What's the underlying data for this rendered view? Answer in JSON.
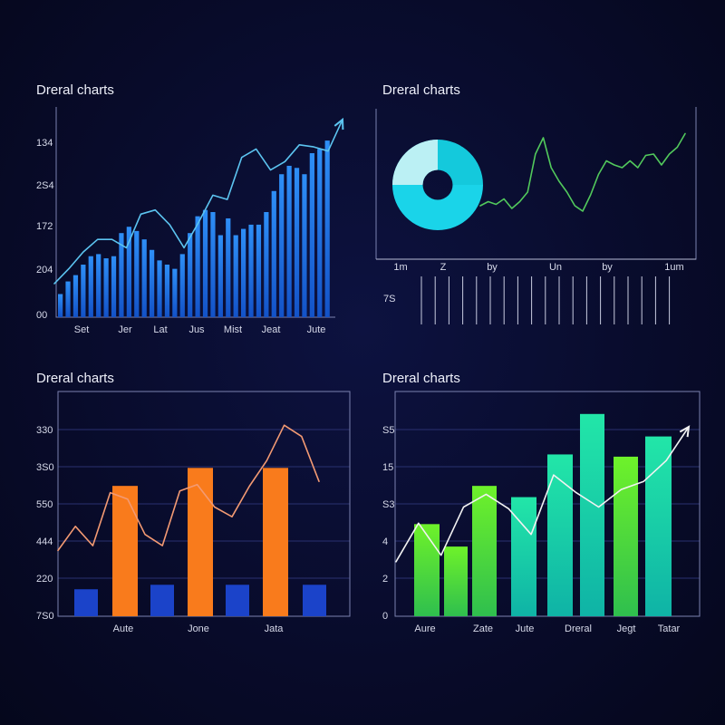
{
  "panels": [
    {
      "title": "Dreral charts"
    },
    {
      "title": "Dreral charts"
    },
    {
      "title": "Dreral charts"
    },
    {
      "title": "Dreral charts"
    }
  ],
  "colors": {
    "blue_bar": "#1f7df0",
    "blue_line": "#5cc4f0",
    "donut_light": "#cdf3f5",
    "donut_cyan": "#17d1e6",
    "green_line": "#52c95c",
    "orange_bar": "#f97b1c",
    "navy_bar": "#1b43c9",
    "orange_line": "#f39a73",
    "green_bar": "#4fe12a",
    "teal_bar": "#16d7a8",
    "white_line": "#f2f2f2"
  },
  "chart_data": [
    {
      "type": "bar",
      "title": "Dreral charts",
      "y_tick_labels": [
        "134",
        "2S4",
        "172",
        "204",
        "00"
      ],
      "x_tick_labels": [
        "Set",
        "Jer",
        "Lat",
        "Jus",
        "Mist",
        "Jeat",
        "Jute"
      ],
      "ylim": [
        0,
        100
      ],
      "values": [
        11,
        17,
        20,
        25,
        29,
        30,
        28,
        29,
        40,
        43,
        41,
        37,
        32,
        27,
        25,
        23,
        30,
        40,
        48,
        51,
        50,
        39,
        47,
        39,
        42,
        44,
        44,
        50,
        60,
        68,
        72,
        71,
        68,
        78,
        80,
        84
      ],
      "trend_line": [
        16,
        23,
        31,
        37,
        37,
        33,
        49,
        51,
        44,
        33,
        45,
        58,
        56,
        76,
        80,
        70,
        74,
        82,
        81,
        79,
        94
      ],
      "trend_arrow": true
    },
    {
      "type": "pie",
      "title": "Dreral charts",
      "slices": [
        {
          "label": "",
          "value": 25
        },
        {
          "label": "",
          "value": 75
        }
      ],
      "hole": 0.33
    },
    {
      "type": "line",
      "title": "Dreral charts",
      "x_tick_labels": [
        "1m",
        "Z",
        "by",
        "Un",
        "by",
        "1um"
      ],
      "y_tick_labels": [
        "7S"
      ],
      "values": [
        42,
        45,
        43,
        47,
        40,
        45,
        52,
        80,
        92,
        70,
        60,
        52,
        42,
        38,
        50,
        65,
        75,
        72,
        70,
        75,
        70,
        79,
        80,
        72,
        80,
        85,
        95
      ]
    },
    {
      "type": "bar",
      "title": "Dreral charts",
      "y_tick_labels": [
        "330",
        "3S0",
        "550",
        "444",
        "220",
        "7S0"
      ],
      "x_tick_labels": [
        "Aute",
        "Jone",
        "Jata"
      ],
      "ylim": [
        0,
        100
      ],
      "series": [
        {
          "name": "",
          "values": [
            12,
            58,
            14,
            66,
            14,
            66,
            14
          ]
        }
      ],
      "trend_line": [
        41,
        56,
        44,
        77,
        73,
        51,
        44,
        78,
        82,
        68,
        62,
        81,
        97,
        119,
        112,
        84
      ]
    },
    {
      "type": "bar",
      "title": "Dreral charts",
      "y_tick_labels": [
        "S5",
        "15",
        "S3",
        "4",
        "2",
        "0"
      ],
      "x_tick_labels": [
        "Aure",
        "Zate",
        "Jute",
        "Dreral",
        "Jegt",
        "Tatar"
      ],
      "ylim": [
        0,
        100
      ],
      "series": [
        {
          "name": "",
          "values": [
            41,
            31,
            58,
            53,
            72,
            90,
            71,
            80
          ]
        }
      ],
      "trend_line": [
        34,
        58,
        38,
        68,
        76,
        67,
        51,
        88,
        77,
        68,
        79,
        84,
        97,
        118
      ]
    }
  ]
}
